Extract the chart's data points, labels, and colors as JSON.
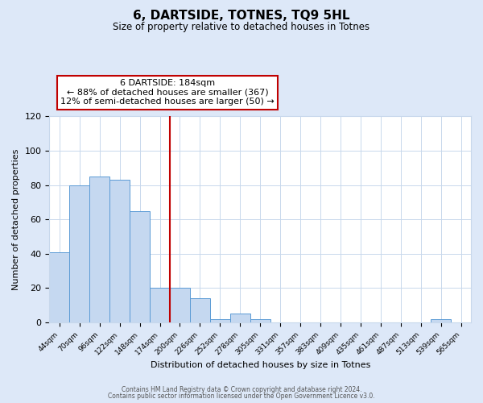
{
  "title": "6, DARTSIDE, TOTNES, TQ9 5HL",
  "subtitle": "Size of property relative to detached houses in Totnes",
  "xlabel": "Distribution of detached houses by size in Totnes",
  "ylabel": "Number of detached properties",
  "bar_labels": [
    "44sqm",
    "70sqm",
    "96sqm",
    "122sqm",
    "148sqm",
    "174sqm",
    "200sqm",
    "226sqm",
    "252sqm",
    "278sqm",
    "305sqm",
    "331sqm",
    "357sqm",
    "383sqm",
    "409sqm",
    "435sqm",
    "461sqm",
    "487sqm",
    "513sqm",
    "539sqm",
    "565sqm"
  ],
  "bar_values": [
    41,
    80,
    85,
    83,
    65,
    20,
    20,
    14,
    2,
    5,
    2,
    0,
    0,
    0,
    0,
    0,
    0,
    0,
    0,
    2,
    0
  ],
  "bar_color": "#c5d8f0",
  "bar_edge_color": "#5b9bd5",
  "vline_x": 5.5,
  "vline_color": "#c00000",
  "ylim": [
    0,
    120
  ],
  "annotation_box_text": "6 DARTSIDE: 184sqm\n← 88% of detached houses are smaller (367)\n12% of semi-detached houses are larger (50) →",
  "footer_line1": "Contains HM Land Registry data © Crown copyright and database right 2024.",
  "footer_line2": "Contains public sector information licensed under the Open Government Licence v3.0.",
  "fig_bg_color": "#dde8f8",
  "plot_bg_color": "#ffffff",
  "grid_color": "#c8d8ec"
}
